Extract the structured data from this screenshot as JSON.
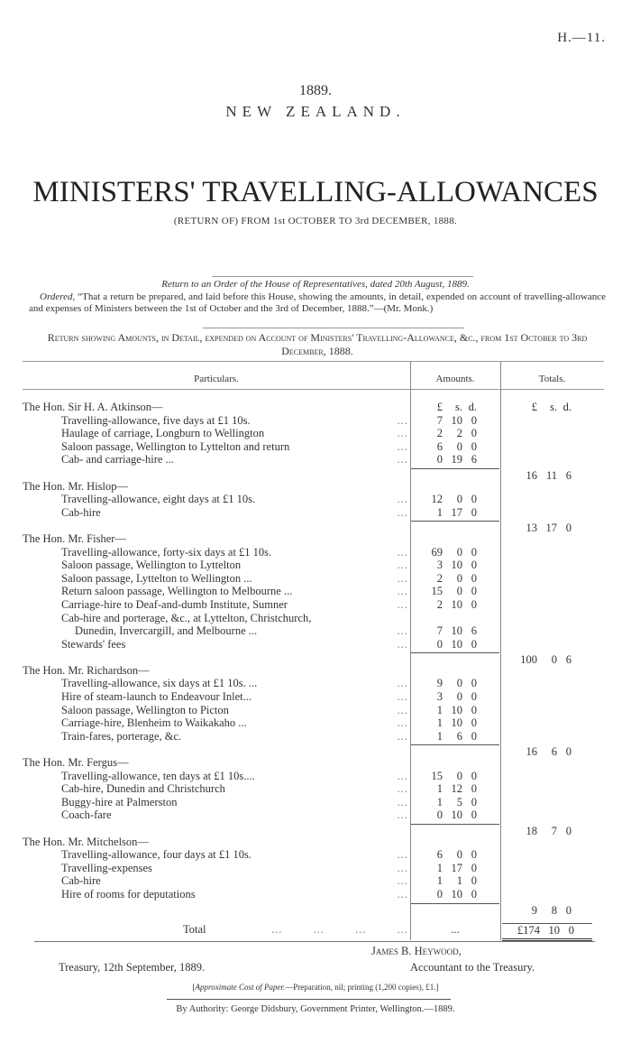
{
  "header": {
    "ref": "H.—11.",
    "year": "1889.",
    "country": "NEW ZEALAND.",
    "title": "MINISTERS' TRAVELLING-ALLOWANCES",
    "subtitle": "(RETURN OF) FROM 1st OCTOBER TO 3rd DECEMBER, 1888."
  },
  "order": {
    "line1": "Return to an Order of the House of Representatives, dated 20th August, 1889.",
    "ordered": "Ordered,",
    "text": " “That a return be prepared, and laid before this House, showing the amounts, in detail, expended on account of travelling-allowance and expenses of Ministers between the 1st of October and the 3rd of December, 1888.”—(Mr. Monk.)"
  },
  "return_heading": "Return showing Amounts, in Detail, expended on Account of Ministers' Travelling-Allowance, &c., from 1st October to 3rd December, 1888.",
  "table": {
    "headers": {
      "particulars": "Particulars.",
      "amounts": "Amounts.",
      "totals": "Totals."
    },
    "units": [
      "£",
      "s.",
      "d."
    ],
    "groups": [
      {
        "minister": "The Hon. Sir H. A. Atkinson—",
        "items": [
          {
            "text": "Travelling-allowance, five days at £1 10s.",
            "amount": [
              "7",
              "10",
              "0"
            ]
          },
          {
            "text": "Haulage of carriage, Longburn to Wellington",
            "amount": [
              "2",
              "2",
              "0"
            ]
          },
          {
            "text": "Saloon passage, Wellington to Lyttelton and return",
            "amount": [
              "6",
              "0",
              "0"
            ]
          },
          {
            "text": "Cab- and carriage-hire ...",
            "amount": [
              "0",
              "19",
              "6"
            ]
          }
        ],
        "total": [
          "16",
          "11",
          "6"
        ]
      },
      {
        "minister": "The Hon. Mr. Hislop—",
        "items": [
          {
            "text": "Travelling-allowance, eight days at £1 10s.",
            "amount": [
              "12",
              "0",
              "0"
            ]
          },
          {
            "text": "Cab-hire",
            "amount": [
              "1",
              "17",
              "0"
            ]
          }
        ],
        "total": [
          "13",
          "17",
          "0"
        ]
      },
      {
        "minister": "The Hon. Mr. Fisher—",
        "items": [
          {
            "text": "Travelling-allowance, forty-six days at £1 10s.",
            "amount": [
              "69",
              "0",
              "0"
            ]
          },
          {
            "text": "Saloon passage, Wellington to Lyttelton",
            "amount": [
              "3",
              "10",
              "0"
            ]
          },
          {
            "text": "Saloon passage, Lyttelton to Wellington ...",
            "amount": [
              "2",
              "0",
              "0"
            ]
          },
          {
            "text": "Return saloon passage, Wellington to Melbourne ...",
            "amount": [
              "15",
              "0",
              "0"
            ]
          },
          {
            "text": "Carriage-hire to Deaf-and-dumb Institute, Sumner",
            "amount": [
              "2",
              "10",
              "0"
            ]
          },
          {
            "text": "Cab-hire and porterage, &c., at Lyttelton, Christchurch,",
            "continuation": "Dunedin, Invercargill, and Melbourne ...",
            "amount": [
              "7",
              "10",
              "6"
            ]
          },
          {
            "text": "Stewards' fees",
            "amount": [
              "0",
              "10",
              "0"
            ]
          }
        ],
        "total": [
          "100",
          "0",
          "6"
        ]
      },
      {
        "minister": "The Hon. Mr. Richardson—",
        "items": [
          {
            "text": "Travelling-allowance, six days at £1 10s. ...",
            "amount": [
              "9",
              "0",
              "0"
            ]
          },
          {
            "text": "Hire of steam-launch to Endeavour Inlet...",
            "amount": [
              "3",
              "0",
              "0"
            ]
          },
          {
            "text": "Saloon passage, Wellington to Picton",
            "amount": [
              "1",
              "10",
              "0"
            ]
          },
          {
            "text": "Carriage-hire, Blenheim to Waikakaho ...",
            "amount": [
              "1",
              "10",
              "0"
            ]
          },
          {
            "text": "Train-fares, porterage, &c.",
            "amount": [
              "1",
              "6",
              "0"
            ]
          }
        ],
        "total": [
          "16",
          "6",
          "0"
        ]
      },
      {
        "minister": "The Hon. Mr. Fergus—",
        "items": [
          {
            "text": "Travelling-allowance, ten days at £1 10s....",
            "amount": [
              "15",
              "0",
              "0"
            ]
          },
          {
            "text": "Cab-hire, Dunedin and Christchurch",
            "amount": [
              "1",
              "12",
              "0"
            ]
          },
          {
            "text": "Buggy-hire at Palmerston",
            "amount": [
              "1",
              "5",
              "0"
            ]
          },
          {
            "text": "Coach-fare",
            "amount": [
              "0",
              "10",
              "0"
            ]
          }
        ],
        "total": [
          "18",
          "7",
          "0"
        ]
      },
      {
        "minister": "The Hon. Mr. Mitchelson—",
        "items": [
          {
            "text": "Travelling-allowance, four days at £1 10s.",
            "amount": [
              "6",
              "0",
              "0"
            ]
          },
          {
            "text": "Travelling-expenses",
            "amount": [
              "1",
              "17",
              "0"
            ]
          },
          {
            "text": "Cab-hire",
            "amount": [
              "1",
              "1",
              "0"
            ]
          },
          {
            "text": "Hire of rooms for deputations",
            "amount": [
              "0",
              "10",
              "0"
            ]
          }
        ],
        "total": [
          "9",
          "8",
          "0"
        ]
      }
    ],
    "total_label": "Total",
    "total_amount_placeholder": "...",
    "grand_total": [
      "£174",
      "10",
      "0"
    ]
  },
  "footer": {
    "signatory": "James B. Heywood,",
    "signatory_title": "Accountant to the Treasury.",
    "place_date": "Treasury, 12th September, 1889.",
    "cost_label": "Approximate Cost of Paper.",
    "cost_text": "—Preparation, nil; printing (1,200 copies), £1.",
    "authority": "By Authority: George Didsbury, Government Printer, Wellington.—1889."
  }
}
